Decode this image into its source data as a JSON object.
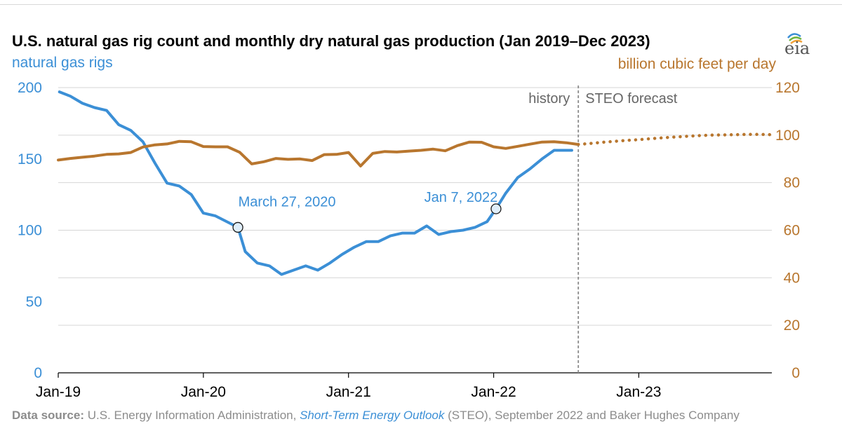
{
  "header": {
    "title": "U.S. natural gas rig count and monthly dry natural gas production (Jan 2019–Dec 2023)",
    "logo_text": "eia"
  },
  "source": {
    "label": "Data source:",
    "text_before": " U.S. Energy Information Administration, ",
    "link": "Short-Term Energy Outlook",
    "text_after": " (STEO), September 2022 and Baker Hughes Company"
  },
  "chart_data": {
    "type": "line",
    "title": "U.S. natural gas rig count and monthly dry natural gas production (Jan 2019–Dec 2023)",
    "x_ticks": [
      "Jan-19",
      "Jan-20",
      "Jan-21",
      "Jan-22",
      "Jan-23"
    ],
    "xlim": [
      "2019-01",
      "2023-12"
    ],
    "y_left": {
      "label": "natural gas rigs",
      "ylim": [
        0,
        200
      ],
      "ticks": [
        0,
        50,
        100,
        150,
        200
      ],
      "color": "#3b8fd6"
    },
    "y_right": {
      "label": "billion cubic feet per day",
      "ylim": [
        0,
        120
      ],
      "ticks": [
        0,
        20,
        40,
        60,
        80,
        100,
        120
      ],
      "color": "#b8762e"
    },
    "grid": true,
    "divider": {
      "date": "2022-08",
      "left_label": "history",
      "right_label": "STEO forecast"
    },
    "annotations": [
      {
        "text": "March 27, 2020",
        "date": "2020-03-27",
        "value": 102
      },
      {
        "text": "Jan 7, 2022",
        "date": "2022-01-07",
        "value": 115
      }
    ],
    "series": [
      {
        "axis": "left",
        "color": "#3b8fd6",
        "style": "solid",
        "points": [
          [
            "2019-01-04",
            197
          ],
          [
            "2019-02-01",
            194
          ],
          [
            "2019-03-01",
            189
          ],
          [
            "2019-04-01",
            186
          ],
          [
            "2019-05-01",
            184
          ],
          [
            "2019-06-01",
            174
          ],
          [
            "2019-07-01",
            170
          ],
          [
            "2019-08-01",
            162
          ],
          [
            "2019-09-01",
            147
          ],
          [
            "2019-10-01",
            133
          ],
          [
            "2019-11-01",
            131
          ],
          [
            "2019-12-01",
            125
          ],
          [
            "2020-01-01",
            112
          ],
          [
            "2020-02-01",
            110
          ],
          [
            "2020-03-27",
            102
          ],
          [
            "2020-04-15",
            85
          ],
          [
            "2020-05-15",
            77
          ],
          [
            "2020-06-15",
            75
          ],
          [
            "2020-07-15",
            69
          ],
          [
            "2020-08-15",
            72
          ],
          [
            "2020-09-15",
            75
          ],
          [
            "2020-10-15",
            72
          ],
          [
            "2020-11-15",
            77
          ],
          [
            "2020-12-15",
            83
          ],
          [
            "2021-01-15",
            88
          ],
          [
            "2021-02-15",
            92
          ],
          [
            "2021-03-15",
            92
          ],
          [
            "2021-04-15",
            96
          ],
          [
            "2021-05-15",
            98
          ],
          [
            "2021-06-15",
            98
          ],
          [
            "2021-07-15",
            103
          ],
          [
            "2021-08-15",
            97
          ],
          [
            "2021-09-15",
            99
          ],
          [
            "2021-10-15",
            100
          ],
          [
            "2021-11-15",
            102
          ],
          [
            "2021-12-15",
            106
          ],
          [
            "2022-01-07",
            115
          ],
          [
            "2022-02-01",
            126
          ],
          [
            "2022-03-01",
            137
          ],
          [
            "2022-04-01",
            143
          ],
          [
            "2022-05-01",
            150
          ],
          [
            "2022-06-01",
            156
          ],
          [
            "2022-07-01",
            156
          ],
          [
            "2022-07-15",
            156
          ]
        ]
      },
      {
        "axis": "right",
        "color": "#b8762e",
        "style": "solid",
        "points": [
          [
            "2019-01",
            89.5
          ],
          [
            "2019-02",
            90.2
          ],
          [
            "2019-03",
            90.7
          ],
          [
            "2019-04",
            91.2
          ],
          [
            "2019-05",
            91.9
          ],
          [
            "2019-06",
            92.1
          ],
          [
            "2019-07",
            92.7
          ],
          [
            "2019-08",
            95.0
          ],
          [
            "2019-09",
            95.9
          ],
          [
            "2019-10",
            96.3
          ],
          [
            "2019-11",
            97.4
          ],
          [
            "2019-12",
            97.2
          ],
          [
            "2020-01",
            95.2
          ],
          [
            "2020-02",
            95.1
          ],
          [
            "2020-03",
            95.1
          ],
          [
            "2020-04",
            92.8
          ],
          [
            "2020-05",
            87.9
          ],
          [
            "2020-06",
            88.8
          ],
          [
            "2020-07",
            90.2
          ],
          [
            "2020-08",
            89.8
          ],
          [
            "2020-09",
            90.0
          ],
          [
            "2020-10",
            89.3
          ],
          [
            "2020-11",
            91.8
          ],
          [
            "2020-12",
            91.9
          ],
          [
            "2021-01",
            92.7
          ],
          [
            "2021-02",
            87.0
          ],
          [
            "2021-03",
            92.3
          ],
          [
            "2021-04",
            93.1
          ],
          [
            "2021-05",
            92.9
          ],
          [
            "2021-06",
            93.3
          ],
          [
            "2021-07",
            93.6
          ],
          [
            "2021-08",
            94.1
          ],
          [
            "2021-09",
            93.4
          ],
          [
            "2021-10",
            95.6
          ],
          [
            "2021-11",
            97.1
          ],
          [
            "2021-12",
            97.0
          ],
          [
            "2022-01",
            95.1
          ],
          [
            "2022-02",
            94.4
          ],
          [
            "2022-03",
            95.3
          ],
          [
            "2022-04",
            96.2
          ],
          [
            "2022-05",
            97.1
          ],
          [
            "2022-06",
            97.2
          ],
          [
            "2022-07",
            96.8
          ],
          [
            "2022-08",
            96.1
          ]
        ]
      },
      {
        "axis": "right",
        "color": "#b8762e",
        "style": "dotted",
        "points": [
          [
            "2022-08",
            96.1
          ],
          [
            "2022-09",
            96.5
          ],
          [
            "2022-10",
            97.0
          ],
          [
            "2022-11",
            97.4
          ],
          [
            "2022-12",
            97.8
          ],
          [
            "2023-01",
            98.1
          ],
          [
            "2023-02",
            98.5
          ],
          [
            "2023-03",
            98.9
          ],
          [
            "2023-04",
            99.2
          ],
          [
            "2023-05",
            99.5
          ],
          [
            "2023-06",
            99.8
          ],
          [
            "2023-07",
            100.0
          ],
          [
            "2023-08",
            100.1
          ],
          [
            "2023-09",
            100.2
          ],
          [
            "2023-10",
            100.3
          ],
          [
            "2023-11",
            100.3
          ],
          [
            "2023-12",
            100.2
          ]
        ]
      }
    ]
  }
}
